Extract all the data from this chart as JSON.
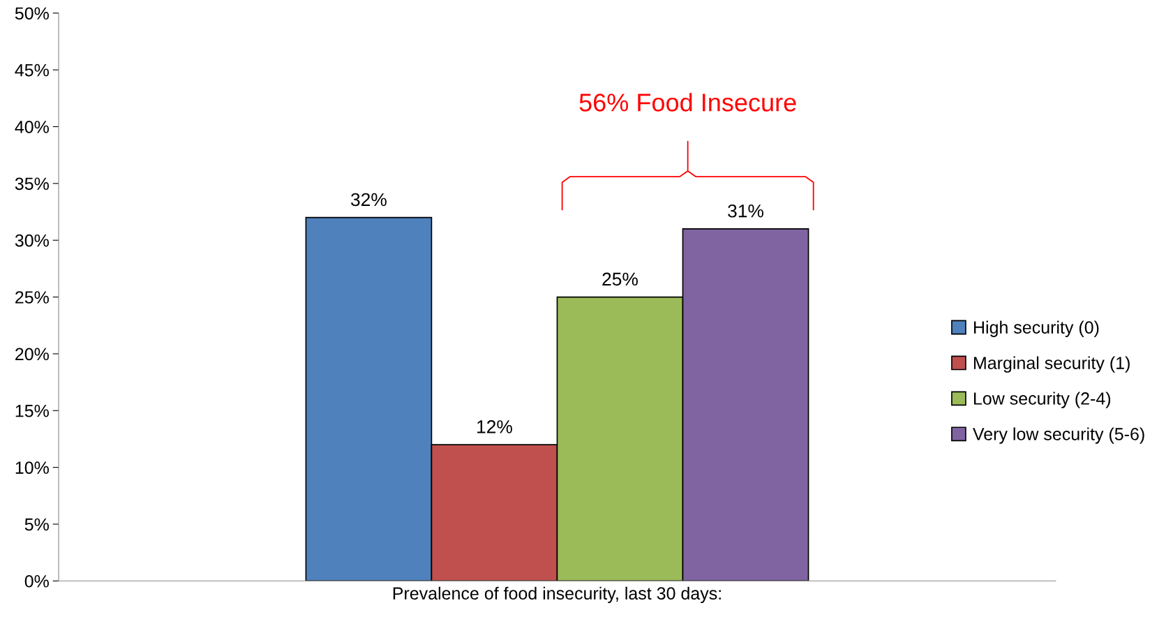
{
  "chart_data": {
    "type": "bar",
    "categories": [
      null
    ],
    "xlabel": "Prevalence of food insecurity, last 30 days:",
    "series": [
      {
        "name": "High security (0)",
        "color": "#4f81bd",
        "values": [
          32
        ]
      },
      {
        "name": "Marginal security (1)",
        "color": "#c0504d",
        "values": [
          12
        ]
      },
      {
        "name": "Low security (2-4)",
        "color": "#9bbb59",
        "values": [
          25
        ]
      },
      {
        "name": "Very low security (5-6)",
        "color": "#8064a2",
        "values": [
          31
        ]
      }
    ],
    "ylim": [
      0,
      50
    ],
    "yticks": [
      {
        "value": 0,
        "label": "0%"
      },
      {
        "value": 5,
        "label": "5%"
      },
      {
        "value": 10,
        "label": "10%"
      },
      {
        "value": 15,
        "label": "15%"
      },
      {
        "value": 20,
        "label": "20%"
      },
      {
        "value": 25,
        "label": "25%"
      },
      {
        "value": 30,
        "label": "30%"
      },
      {
        "value": 35,
        "label": "35%"
      },
      {
        "value": 40,
        "label": "40%"
      },
      {
        "value": 45,
        "label": "45%"
      },
      {
        "value": 50,
        "label": "50%"
      }
    ],
    "value_labels": [
      "32%",
      "12%",
      "25%",
      "31%"
    ],
    "annotations": [
      "56% Food Insecure"
    ],
    "legend": "right",
    "grid": false
  }
}
